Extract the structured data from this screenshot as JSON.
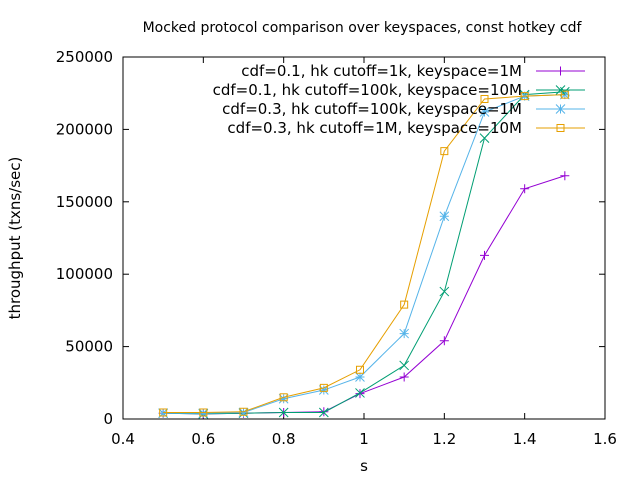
{
  "chart_data": {
    "type": "line",
    "title": "Mocked protocol comparison over keyspaces, const hotkey cdf",
    "xlabel": "s",
    "ylabel": "throughput (txns/sec)",
    "xlim": [
      0.4,
      1.6
    ],
    "ylim": [
      0,
      250000
    ],
    "xticks": [
      0.4,
      0.6,
      0.8,
      1,
      1.2,
      1.4,
      1.6
    ],
    "xtick_labels": [
      "0.4",
      "0.6",
      "0.8",
      "1",
      "1.2",
      "1.4",
      "1.6"
    ],
    "yticks": [
      0,
      50000,
      100000,
      150000,
      200000,
      250000
    ],
    "ytick_labels": [
      "0",
      "50000",
      "100000",
      "150000",
      "200000",
      "250000"
    ],
    "grid": false,
    "legend_position": "top-right",
    "series": [
      {
        "name": "cdf=0.1, hk cutoff=1k, keyspace=1M",
        "color": "#9400d3",
        "marker": "plus",
        "x": [
          0.5,
          0.6,
          0.7,
          0.8,
          0.9,
          0.99,
          1.1,
          1.2,
          1.3,
          1.4,
          1.5
        ],
        "y": [
          4000,
          3500,
          4000,
          4500,
          5000,
          17500,
          29000,
          54000,
          113000,
          159000,
          168000
        ]
      },
      {
        "name": "cdf=0.1, hk cutoff=100k, keyspace=10M",
        "color": "#009e73",
        "marker": "cross",
        "x": [
          0.5,
          0.6,
          0.7,
          0.8,
          0.9,
          0.99,
          1.1,
          1.2,
          1.3,
          1.4,
          1.5
        ],
        "y": [
          4000,
          3500,
          4000,
          4500,
          4500,
          18000,
          37000,
          88000,
          194000,
          224000,
          226000
        ]
      },
      {
        "name": "cdf=0.3, hk cutoff=100k, keyspace=1M",
        "color": "#56b4e9",
        "marker": "star",
        "x": [
          0.5,
          0.6,
          0.7,
          0.8,
          0.9,
          0.99,
          1.1,
          1.2,
          1.3,
          1.4,
          1.5
        ],
        "y": [
          4000,
          4000,
          4500,
          14000,
          20000,
          29000,
          59000,
          140000,
          212000,
          223000,
          224000
        ]
      },
      {
        "name": "cdf=0.3, hk cutoff=1M, keyspace=10M",
        "color": "#e69f00",
        "marker": "square",
        "x": [
          0.5,
          0.6,
          0.7,
          0.8,
          0.9,
          0.99,
          1.1,
          1.2,
          1.3,
          1.4,
          1.5
        ],
        "y": [
          4500,
          4500,
          5000,
          15000,
          21500,
          34000,
          79000,
          185000,
          221000,
          223000,
          224000
        ]
      }
    ]
  }
}
